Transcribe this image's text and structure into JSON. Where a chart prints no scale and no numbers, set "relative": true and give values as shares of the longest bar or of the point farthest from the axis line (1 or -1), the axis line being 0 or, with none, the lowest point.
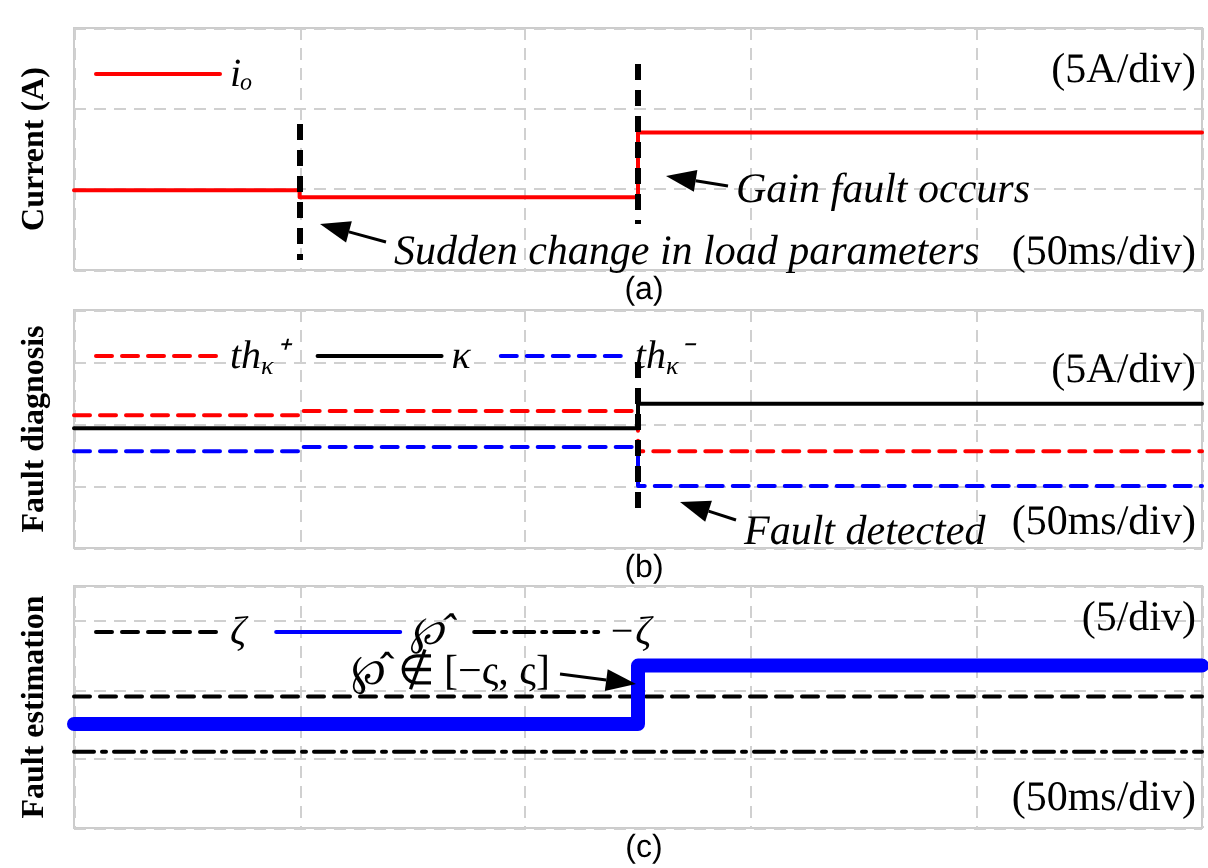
{
  "chart_data": [
    {
      "type": "step",
      "ylabel": "Current (A)",
      "relative": true,
      "grid": true,
      "legend": "top left",
      "marker": "none",
      "categories": [
        null,
        null,
        null,
        null,
        null,
        null,
        null,
        null,
        null,
        null,
        null,
        null,
        null,
        null,
        null,
        null,
        null,
        null,
        null,
        null,
        null,
        null,
        null,
        null,
        null,
        null,
        null,
        null,
        null,
        null,
        null,
        null,
        null,
        null,
        null,
        null,
        null,
        null,
        null,
        null,
        null
      ],
      "series": [
        {
          "name": "iₒ",
          "color": "#ff0000",
          "line_style": "solid",
          "values": [
            0.58,
            0.58,
            0.58,
            0.58,
            0.58,
            0.58,
            0.58,
            0.58,
            0.53,
            0.53,
            0.53,
            0.53,
            0.53,
            0.53,
            0.53,
            0.53,
            0.53,
            0.53,
            0.53,
            0.53,
            1,
            1,
            1,
            1,
            1,
            1,
            1,
            1,
            1,
            1,
            1,
            1,
            1,
            1,
            1,
            1,
            1,
            1,
            1,
            1,
            1
          ]
        }
      ],
      "annotations": [
        "(5A/div)",
        "(50ms/div)",
        "(a)",
        "Gain fault occurs",
        "Sudden change in load parameters"
      ]
    },
    {
      "type": "step",
      "ylabel": "Fault diagnosis",
      "relative": true,
      "grid": true,
      "legend": "top left",
      "marker": "none",
      "categories": [
        null,
        null,
        null,
        null,
        null,
        null,
        null,
        null,
        null,
        null,
        null,
        null,
        null,
        null,
        null,
        null,
        null,
        null,
        null,
        null,
        null,
        null,
        null,
        null,
        null,
        null,
        null,
        null,
        null,
        null,
        null,
        null,
        null,
        null,
        null,
        null,
        null,
        null,
        null,
        null,
        null
      ],
      "series": [
        {
          "name": "th$_{κ}$⁺",
          "color": "#ff0000",
          "line_style": "dashed",
          "values": [
            0.92,
            0.92,
            0.92,
            0.92,
            0.92,
            0.92,
            0.92,
            0.92,
            0.95,
            0.95,
            0.95,
            0.95,
            0.95,
            0.95,
            0.95,
            0.95,
            0.95,
            0.95,
            0.95,
            0.95,
            0.67,
            0.67,
            0.67,
            0.67,
            0.67,
            0.67,
            0.67,
            0.67,
            0.67,
            0.67,
            0.67,
            0.67,
            0.67,
            0.67,
            0.67,
            0.67,
            0.67,
            0.67,
            0.67,
            0.67,
            0.67
          ]
        },
        {
          "name": "κ",
          "color": "#000000",
          "line_style": "solid",
          "values": [
            0.83,
            0.83,
            0.83,
            0.83,
            0.83,
            0.83,
            0.83,
            0.83,
            0.83,
            0.83,
            0.83,
            0.83,
            0.83,
            0.83,
            0.83,
            0.83,
            0.83,
            0.83,
            0.83,
            0.83,
            1,
            1,
            1,
            1,
            1,
            1,
            1,
            1,
            1,
            1,
            1,
            1,
            1,
            1,
            1,
            1,
            1,
            1,
            1,
            1,
            1
          ]
        },
        {
          "name": "th$_{κ}$⁻",
          "color": "#0000ff",
          "line_style": "dashed",
          "values": [
            0.67,
            0.67,
            0.67,
            0.67,
            0.67,
            0.67,
            0.67,
            0.67,
            0.7,
            0.7,
            0.7,
            0.7,
            0.7,
            0.7,
            0.7,
            0.7,
            0.7,
            0.7,
            0.7,
            0.7,
            0.43,
            0.43,
            0.43,
            0.43,
            0.43,
            0.43,
            0.43,
            0.43,
            0.43,
            0.43,
            0.43,
            0.43,
            0.43,
            0.43,
            0.43,
            0.43,
            0.43,
            0.43,
            0.43,
            0.43,
            0.43
          ]
        }
      ],
      "annotations": [
        "(5A/div)",
        "(50ms/div)",
        "(b)",
        "Fault detected"
      ]
    },
    {
      "type": "step",
      "ylabel": "Fault estimation",
      "relative": true,
      "grid": true,
      "legend": "top left",
      "marker": "none",
      "categories": [
        null,
        null,
        null,
        null,
        null,
        null,
        null,
        null,
        null,
        null,
        null,
        null,
        null,
        null,
        null,
        null,
        null,
        null,
        null,
        null,
        null,
        null,
        null,
        null,
        null,
        null,
        null,
        null,
        null,
        null,
        null,
        null,
        null,
        null,
        null,
        null,
        null,
        null,
        null,
        null,
        null
      ],
      "series": [
        {
          "name": "ζ",
          "color": "#000000",
          "line_style": "dashed",
          "values": [
            0.81,
            0.81,
            0.81,
            0.81,
            0.81,
            0.81,
            0.81,
            0.81,
            0.81,
            0.81,
            0.81,
            0.81,
            0.81,
            0.81,
            0.81,
            0.81,
            0.81,
            0.81,
            0.81,
            0.81,
            0.81,
            0.81,
            0.81,
            0.81,
            0.81,
            0.81,
            0.81,
            0.81,
            0.81,
            0.81,
            0.81,
            0.81,
            0.81,
            0.81,
            0.81,
            0.81,
            0.81,
            0.81,
            0.81,
            0.81,
            0.81
          ]
        },
        {
          "name": "℘̂",
          "color": "#0000ff",
          "line_style": "solid",
          "values": [
            0.64,
            0.64,
            0.64,
            0.64,
            0.64,
            0.64,
            0.64,
            0.64,
            0.64,
            0.64,
            0.64,
            0.64,
            0.64,
            0.64,
            0.64,
            0.64,
            0.64,
            0.64,
            0.64,
            0.64,
            1,
            1,
            1,
            1,
            1,
            1,
            1,
            1,
            1,
            1,
            1,
            1,
            1,
            1,
            1,
            1,
            1,
            1,
            1,
            1,
            1
          ]
        },
        {
          "name": "−ζ",
          "color": "#000000",
          "line_style": "dashdot",
          "values": [
            0.47,
            0.47,
            0.47,
            0.47,
            0.47,
            0.47,
            0.47,
            0.47,
            0.47,
            0.47,
            0.47,
            0.47,
            0.47,
            0.47,
            0.47,
            0.47,
            0.47,
            0.47,
            0.47,
            0.47,
            0.47,
            0.47,
            0.47,
            0.47,
            0.47,
            0.47,
            0.47,
            0.47,
            0.47,
            0.47,
            0.47,
            0.47,
            0.47,
            0.47,
            0.47,
            0.47,
            0.47,
            0.47,
            0.47,
            0.47,
            0.47
          ]
        }
      ],
      "annotations": [
        "(5/div)",
        "(50ms/div)",
        "(c)",
        "℘̂ ∉ [−ς, ς]"
      ]
    }
  ]
}
